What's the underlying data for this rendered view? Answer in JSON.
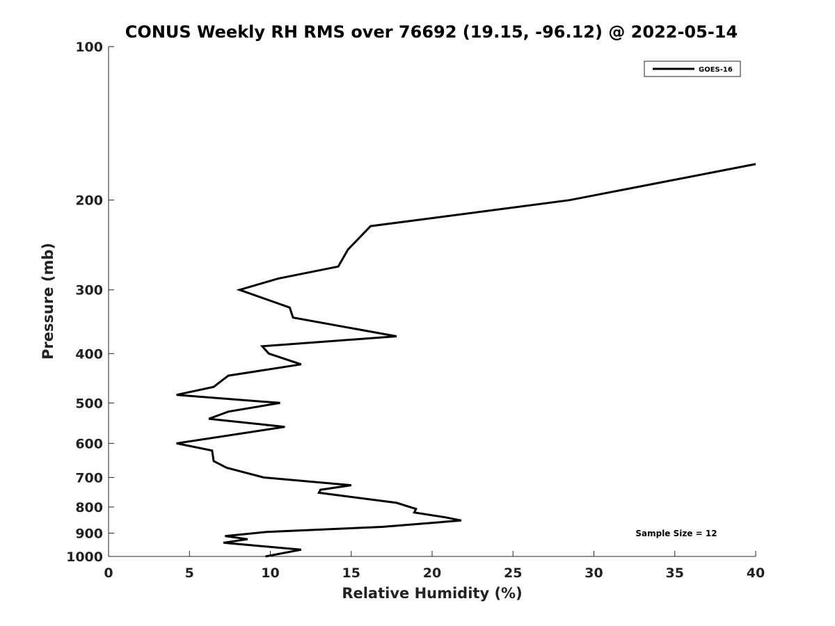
{
  "chart_data": {
    "type": "line",
    "title": "CONUS Weekly RH RMS over 76692 (19.15, -96.12) @ 2022-05-14",
    "xlabel": "Relative Humidity (%)",
    "ylabel": "Pressure (mb)",
    "xlim": [
      0,
      40
    ],
    "ylim": [
      100,
      1000
    ],
    "y_scale": "log",
    "y_reversed": true,
    "grid": false,
    "legend_position": "top-right",
    "x_ticks": [
      "0",
      "5",
      "10",
      "15",
      "20",
      "25",
      "30",
      "35",
      "40"
    ],
    "y_ticks": [
      "100",
      "200",
      "300",
      "400",
      "500",
      "600",
      "700",
      "800",
      "900",
      "1000"
    ],
    "series": [
      {
        "name": "GOES-16",
        "color": "#000000",
        "points": [
          {
            "x": 40.0,
            "y": 170
          },
          {
            "x": 28.5,
            "y": 200
          },
          {
            "x": 16.2,
            "y": 225
          },
          {
            "x": 14.8,
            "y": 250
          },
          {
            "x": 14.2,
            "y": 270
          },
          {
            "x": 10.5,
            "y": 285
          },
          {
            "x": 8.1,
            "y": 300
          },
          {
            "x": 11.2,
            "y": 325
          },
          {
            "x": 11.4,
            "y": 340
          },
          {
            "x": 17.8,
            "y": 370
          },
          {
            "x": 9.5,
            "y": 387
          },
          {
            "x": 9.9,
            "y": 400
          },
          {
            "x": 11.9,
            "y": 420
          },
          {
            "x": 7.4,
            "y": 442
          },
          {
            "x": 6.5,
            "y": 465
          },
          {
            "x": 4.2,
            "y": 482
          },
          {
            "x": 10.6,
            "y": 500
          },
          {
            "x": 7.4,
            "y": 520
          },
          {
            "x": 6.2,
            "y": 537
          },
          {
            "x": 10.9,
            "y": 557
          },
          {
            "x": 4.2,
            "y": 600
          },
          {
            "x": 6.4,
            "y": 620
          },
          {
            "x": 6.5,
            "y": 650
          },
          {
            "x": 7.3,
            "y": 670
          },
          {
            "x": 9.6,
            "y": 700
          },
          {
            "x": 15.0,
            "y": 725
          },
          {
            "x": 13.1,
            "y": 740
          },
          {
            "x": 13.0,
            "y": 750
          },
          {
            "x": 17.8,
            "y": 785
          },
          {
            "x": 19.0,
            "y": 807
          },
          {
            "x": 18.9,
            "y": 820
          },
          {
            "x": 20.8,
            "y": 838
          },
          {
            "x": 21.8,
            "y": 850
          },
          {
            "x": 16.9,
            "y": 875
          },
          {
            "x": 9.8,
            "y": 895
          },
          {
            "x": 7.2,
            "y": 912
          },
          {
            "x": 8.6,
            "y": 925
          },
          {
            "x": 7.1,
            "y": 940
          },
          {
            "x": 11.9,
            "y": 970
          },
          {
            "x": 9.7,
            "y": 1000
          }
        ]
      }
    ],
    "annotations": [
      "Sample Size = 12"
    ]
  }
}
